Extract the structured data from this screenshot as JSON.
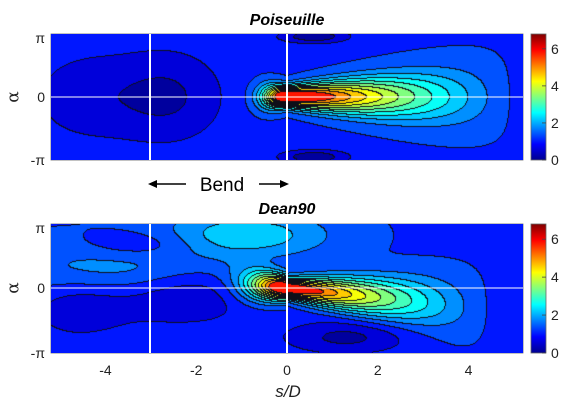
{
  "chart_data": [
    {
      "type": "heatmap",
      "subtype": "filled-contour",
      "title": "Poiseuille",
      "xlabel": "",
      "ylabel": "α",
      "xlim": [
        -5.2,
        5.2
      ],
      "ylim": [
        -3.1416,
        3.1416
      ],
      "y_ticks": [
        {
          "value": -3.1416,
          "label": "-π"
        },
        {
          "value": 0,
          "label": "0"
        },
        {
          "value": 3.1416,
          "label": "π"
        }
      ],
      "colorbar": {
        "min": 0,
        "max": 6.8,
        "ticks": [
          0,
          2,
          4,
          6
        ],
        "colormap": "jet"
      },
      "contour_levels": [
        0.4,
        0.8,
        1.2,
        1.6,
        2.0,
        2.4,
        2.8,
        3.2,
        3.6,
        4.0,
        4.4,
        4.8,
        5.2
      ],
      "reference_lines": {
        "vertical_x": [
          -3.0,
          0.0
        ],
        "horizontal_y": [
          0.0
        ]
      },
      "features": {
        "peak": {
          "s": 0.0,
          "alpha": 0.0,
          "value": 6.5
        },
        "background_value": 1.15,
        "downstream_decay_length": 5.0,
        "low_regions": [
          {
            "s": -2.6,
            "alpha": 0.0,
            "value": 0.35
          },
          {
            "s": -4.5,
            "alpha": 0.0,
            "value": 0.6
          },
          {
            "s": 0.6,
            "alpha": 3.0,
            "value": 0.1
          },
          {
            "s": 0.6,
            "alpha": -3.0,
            "value": 0.1
          }
        ]
      }
    },
    {
      "type": "heatmap",
      "subtype": "filled-contour",
      "title": "Dean90",
      "xlabel": "s/D",
      "ylabel": "α",
      "xlim": [
        -5.2,
        5.2
      ],
      "ylim": [
        -3.1416,
        3.1416
      ],
      "x_ticks": [
        -4,
        -2,
        0,
        2,
        4
      ],
      "y_ticks": [
        {
          "value": -3.1416,
          "label": "-π"
        },
        {
          "value": 0,
          "label": "0"
        },
        {
          "value": 3.1416,
          "label": "π"
        }
      ],
      "colorbar": {
        "min": 0,
        "max": 6.8,
        "ticks": [
          0,
          2,
          4,
          6
        ],
        "colormap": "jet"
      },
      "contour_levels": [
        0.4,
        0.8,
        1.2,
        1.6,
        2.0,
        2.4,
        2.8,
        3.2,
        3.6,
        4.0,
        4.4,
        4.8,
        5.2
      ],
      "reference_lines": {
        "vertical_x": [
          -3.0,
          0.0
        ],
        "horizontal_y": [
          0.0
        ]
      },
      "features": {
        "peak": {
          "s": 0.05,
          "alpha": 0.0,
          "value": 6.3
        },
        "background_value": 1.15,
        "streak_tilt": -0.22,
        "low_regions": [
          {
            "s": -2.3,
            "alpha": -0.4,
            "value": 0.35
          },
          {
            "s": -4.6,
            "alpha": -0.9,
            "value": 0.5
          },
          {
            "s": -3.2,
            "alpha": 2.1,
            "value": 0.55
          },
          {
            "s": 1.3,
            "alpha": -2.4,
            "value": 0.3
          }
        ],
        "high_regions": [
          {
            "s": -0.9,
            "alpha": 2.6,
            "value": 2.3
          },
          {
            "s": -3.8,
            "alpha": 0.9,
            "value": 1.9
          }
        ]
      }
    }
  ],
  "annotation": {
    "text": "Bend",
    "span_from_s": -3.0,
    "span_to_s": 0.0
  }
}
